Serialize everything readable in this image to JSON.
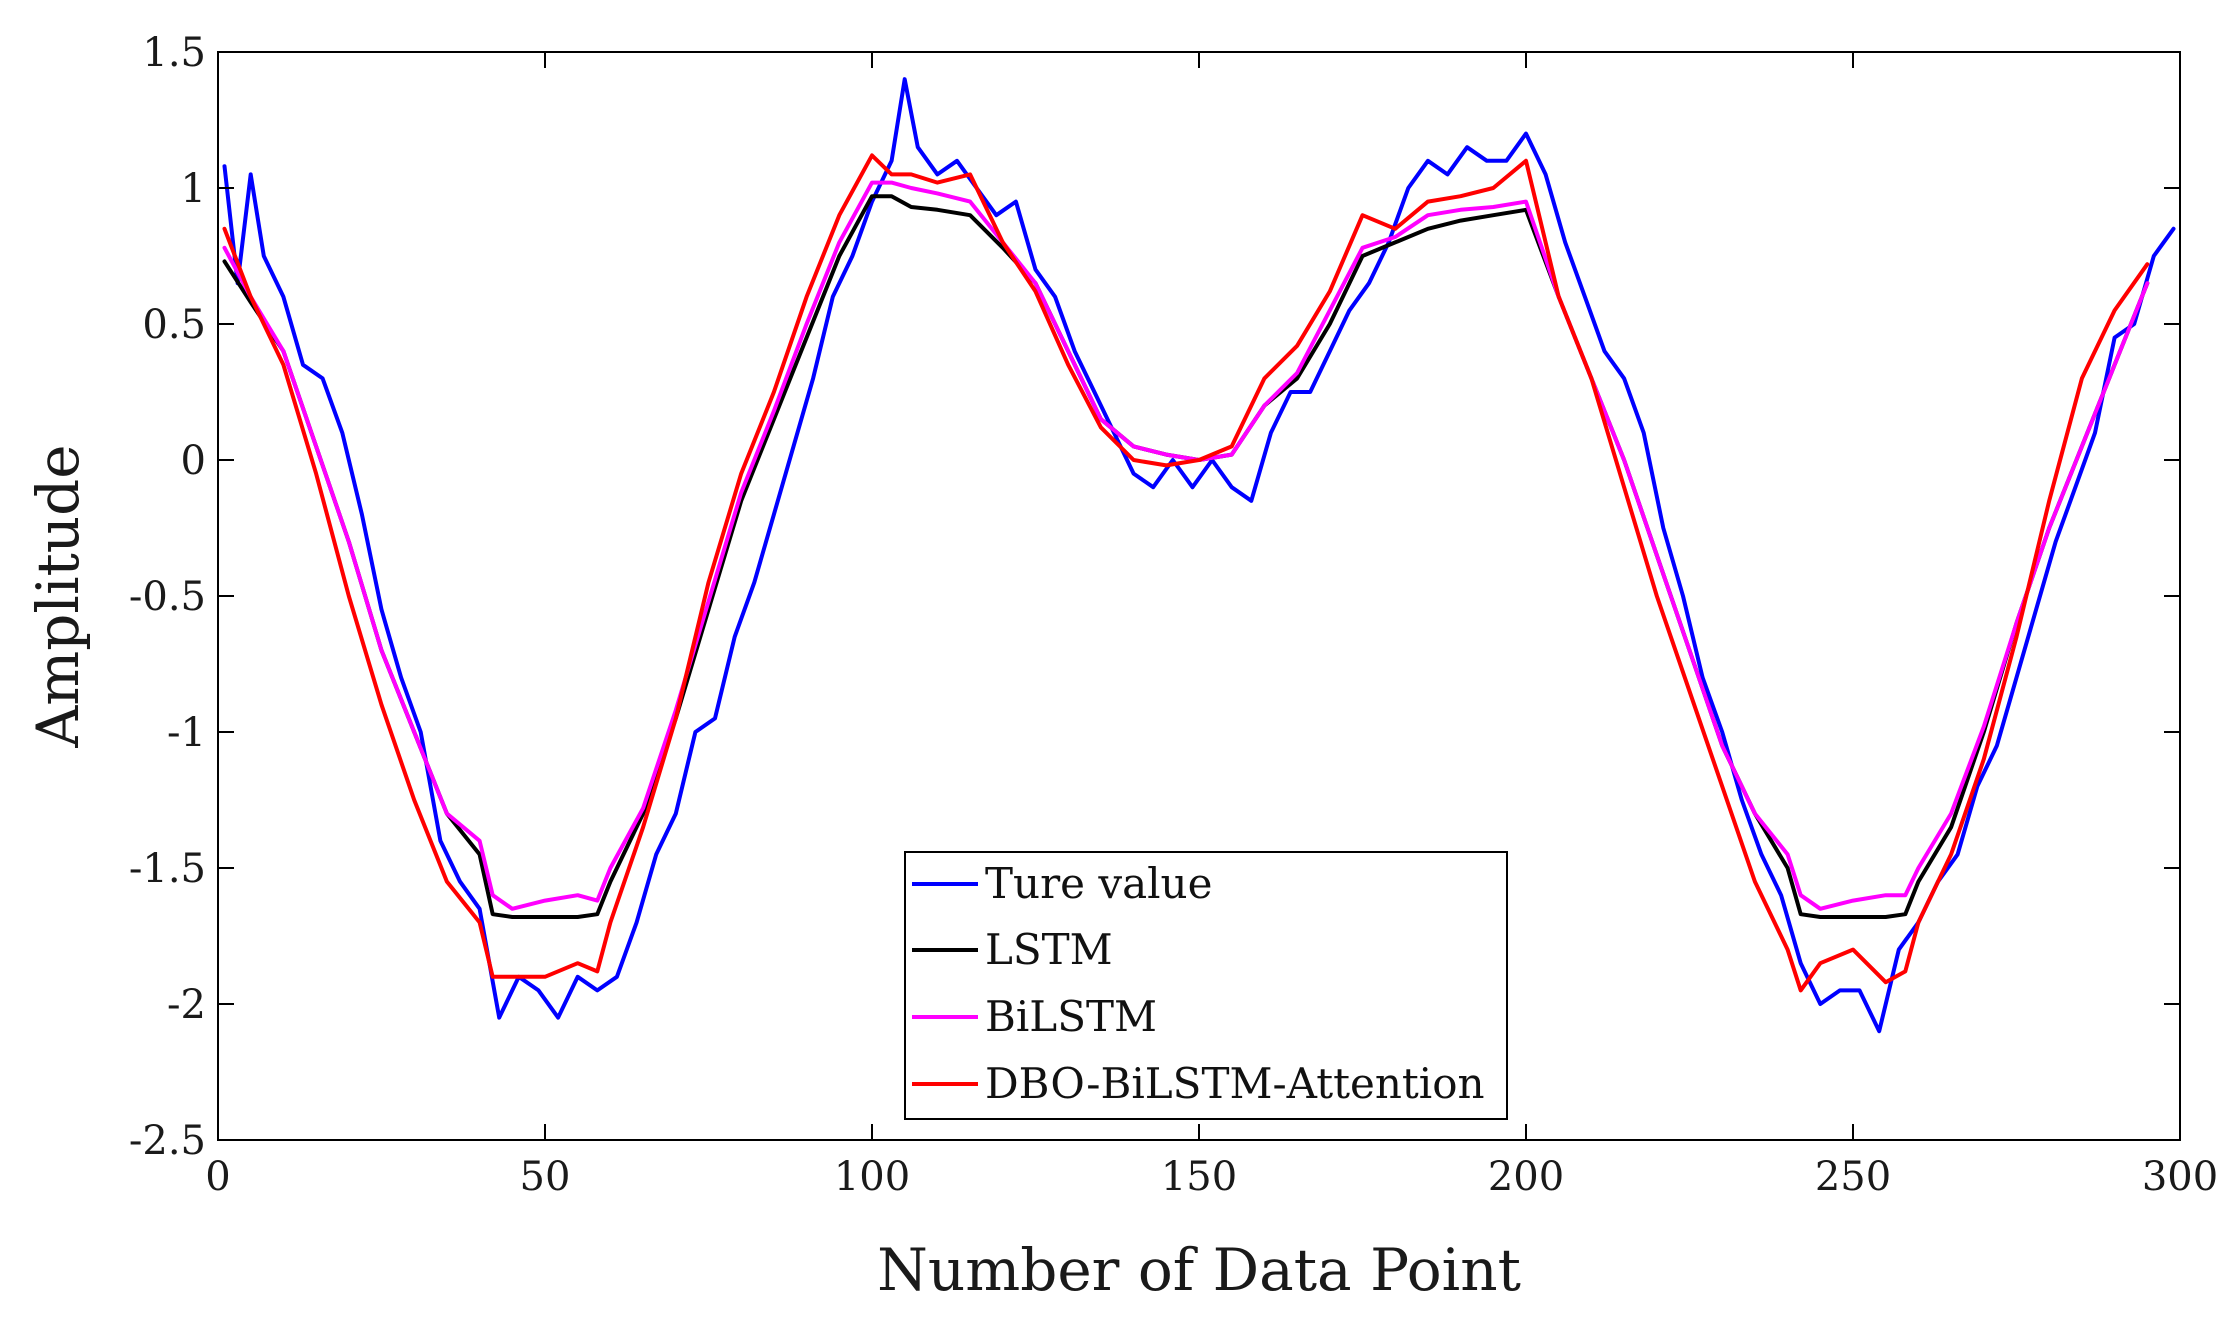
{
  "chart_data": {
    "type": "line",
    "title": "",
    "xlabel": "Number of Data Point",
    "ylabel": "Amplitude",
    "xlim": [
      0,
      300
    ],
    "ylim": [
      -2.5,
      1.5
    ],
    "xticks": [
      0,
      50,
      100,
      150,
      200,
      250,
      300
    ],
    "yticks": [
      1.5,
      1,
      0.5,
      0,
      -0.5,
      -1,
      -1.5,
      -2,
      -2.5
    ],
    "xtick_labels": [
      "0",
      "50",
      "100",
      "150",
      "200",
      "250",
      "300"
    ],
    "ytick_labels": [
      "1.5",
      "1",
      "0.5",
      "0",
      "-0.5",
      "-1",
      "-1.5",
      "-2",
      "-2.5"
    ],
    "grid": false,
    "legend_position": "bottom-center",
    "series": [
      {
        "name": "Ture value",
        "color": "#0000ff",
        "x": [
          1,
          3,
          5,
          7,
          10,
          13,
          16,
          19,
          22,
          25,
          28,
          31,
          34,
          37,
          40,
          43,
          46,
          49,
          52,
          55,
          58,
          61,
          64,
          67,
          70,
          73,
          76,
          79,
          82,
          85,
          88,
          91,
          94,
          97,
          100,
          103,
          105,
          107,
          110,
          113,
          116,
          119,
          122,
          125,
          128,
          131,
          134,
          137,
          140,
          143,
          146,
          149,
          152,
          155,
          158,
          161,
          164,
          167,
          170,
          173,
          176,
          179,
          182,
          185,
          188,
          191,
          194,
          197,
          200,
          203,
          206,
          209,
          212,
          215,
          218,
          221,
          224,
          227,
          230,
          233,
          236,
          239,
          242,
          245,
          248,
          251,
          254,
          257,
          260,
          263,
          266,
          269,
          272,
          275,
          278,
          281,
          284,
          287,
          290,
          293,
          296,
          299
        ],
        "values": [
          1.08,
          0.65,
          1.05,
          0.75,
          0.6,
          0.35,
          0.3,
          0.1,
          -0.2,
          -0.55,
          -0.8,
          -1.0,
          -1.4,
          -1.55,
          -1.65,
          -2.05,
          -1.9,
          -1.95,
          -2.05,
          -1.9,
          -1.95,
          -1.9,
          -1.7,
          -1.45,
          -1.3,
          -1.0,
          -0.95,
          -0.65,
          -0.45,
          -0.2,
          0.05,
          0.3,
          0.6,
          0.75,
          0.95,
          1.1,
          1.4,
          1.15,
          1.05,
          1.1,
          1.0,
          0.9,
          0.95,
          0.7,
          0.6,
          0.4,
          0.25,
          0.1,
          -0.05,
          -0.1,
          0.0,
          -0.1,
          0.0,
          -0.1,
          -0.15,
          0.1,
          0.25,
          0.25,
          0.4,
          0.55,
          0.65,
          0.8,
          1.0,
          1.1,
          1.05,
          1.15,
          1.1,
          1.1,
          1.2,
          1.05,
          0.8,
          0.6,
          0.4,
          0.3,
          0.1,
          -0.25,
          -0.5,
          -0.8,
          -1.0,
          -1.25,
          -1.45,
          -1.6,
          -1.85,
          -2.0,
          -1.95,
          -1.95,
          -2.1,
          -1.8,
          -1.7,
          -1.55,
          -1.45,
          -1.2,
          -1.05,
          -0.8,
          -0.55,
          -0.3,
          -0.1,
          0.1,
          0.45,
          0.5,
          0.75,
          0.85
        ]
      },
      {
        "name": "LSTM",
        "color": "#000000",
        "x": [
          1,
          5,
          10,
          15,
          20,
          25,
          30,
          35,
          40,
          42,
          45,
          50,
          55,
          58,
          60,
          65,
          70,
          75,
          80,
          85,
          90,
          95,
          100,
          103,
          106,
          110,
          115,
          120,
          125,
          130,
          135,
          140,
          145,
          150,
          155,
          160,
          165,
          170,
          175,
          180,
          185,
          190,
          195,
          200,
          205,
          210,
          215,
          220,
          225,
          230,
          235,
          240,
          242,
          245,
          250,
          255,
          258,
          260,
          265,
          270,
          275,
          280,
          285,
          290,
          295
        ],
        "values": [
          0.73,
          0.58,
          0.4,
          0.05,
          -0.3,
          -0.7,
          -1.0,
          -1.3,
          -1.45,
          -1.67,
          -1.68,
          -1.68,
          -1.68,
          -1.67,
          -1.55,
          -1.3,
          -0.95,
          -0.55,
          -0.15,
          0.15,
          0.45,
          0.75,
          0.97,
          0.97,
          0.93,
          0.92,
          0.9,
          0.78,
          0.65,
          0.4,
          0.15,
          0.05,
          0.02,
          0.0,
          0.02,
          0.2,
          0.3,
          0.5,
          0.75,
          0.8,
          0.85,
          0.88,
          0.9,
          0.92,
          0.6,
          0.3,
          0.0,
          -0.35,
          -0.7,
          -1.05,
          -1.3,
          -1.5,
          -1.67,
          -1.68,
          -1.68,
          -1.68,
          -1.67,
          -1.55,
          -1.35,
          -1.0,
          -0.6,
          -0.25,
          0.05,
          0.35,
          0.65
        ]
      },
      {
        "name": "BiLSTM",
        "color": "#ff00ff",
        "x": [
          1,
          5,
          10,
          15,
          20,
          25,
          30,
          35,
          40,
          42,
          45,
          50,
          55,
          58,
          60,
          65,
          70,
          75,
          80,
          85,
          90,
          95,
          100,
          103,
          106,
          110,
          115,
          120,
          125,
          130,
          135,
          140,
          145,
          150,
          155,
          160,
          165,
          170,
          175,
          180,
          185,
          190,
          195,
          200,
          205,
          210,
          215,
          220,
          225,
          230,
          235,
          240,
          242,
          245,
          250,
          255,
          258,
          260,
          265,
          270,
          275,
          280,
          285,
          290,
          295
        ],
        "values": [
          0.78,
          0.6,
          0.4,
          0.05,
          -0.3,
          -0.7,
          -1.0,
          -1.3,
          -1.4,
          -1.6,
          -1.65,
          -1.62,
          -1.6,
          -1.62,
          -1.5,
          -1.28,
          -0.92,
          -0.52,
          -0.12,
          0.18,
          0.5,
          0.8,
          1.02,
          1.02,
          1.0,
          0.98,
          0.95,
          0.8,
          0.65,
          0.4,
          0.15,
          0.05,
          0.02,
          0.0,
          0.02,
          0.2,
          0.32,
          0.55,
          0.78,
          0.82,
          0.9,
          0.92,
          0.93,
          0.95,
          0.6,
          0.3,
          0.0,
          -0.35,
          -0.7,
          -1.05,
          -1.3,
          -1.45,
          -1.6,
          -1.65,
          -1.62,
          -1.6,
          -1.6,
          -1.5,
          -1.3,
          -0.98,
          -0.6,
          -0.25,
          0.05,
          0.35,
          0.65
        ]
      },
      {
        "name": "DBO-BiLSTM-Attention",
        "color": "#ff0000",
        "x": [
          1,
          5,
          10,
          15,
          20,
          25,
          30,
          35,
          40,
          42,
          45,
          50,
          55,
          58,
          60,
          65,
          70,
          75,
          80,
          85,
          90,
          95,
          100,
          103,
          106,
          110,
          115,
          120,
          125,
          130,
          135,
          140,
          145,
          150,
          155,
          160,
          165,
          170,
          175,
          180,
          185,
          190,
          195,
          200,
          205,
          210,
          215,
          220,
          225,
          230,
          235,
          240,
          242,
          245,
          250,
          255,
          258,
          260,
          265,
          270,
          275,
          280,
          285,
          290,
          295
        ],
        "values": [
          0.85,
          0.6,
          0.35,
          -0.05,
          -0.5,
          -0.9,
          -1.25,
          -1.55,
          -1.7,
          -1.9,
          -1.9,
          -1.9,
          -1.85,
          -1.88,
          -1.7,
          -1.35,
          -0.95,
          -0.45,
          -0.05,
          0.25,
          0.6,
          0.9,
          1.12,
          1.05,
          1.05,
          1.02,
          1.05,
          0.8,
          0.62,
          0.35,
          0.12,
          0.0,
          -0.02,
          0.0,
          0.05,
          0.3,
          0.42,
          0.62,
          0.9,
          0.85,
          0.95,
          0.97,
          1.0,
          1.1,
          0.6,
          0.3,
          -0.1,
          -0.5,
          -0.85,
          -1.2,
          -1.55,
          -1.8,
          -1.95,
          -1.85,
          -1.8,
          -1.92,
          -1.88,
          -1.7,
          -1.45,
          -1.1,
          -0.65,
          -0.15,
          0.3,
          0.55,
          0.72
        ]
      }
    ]
  }
}
